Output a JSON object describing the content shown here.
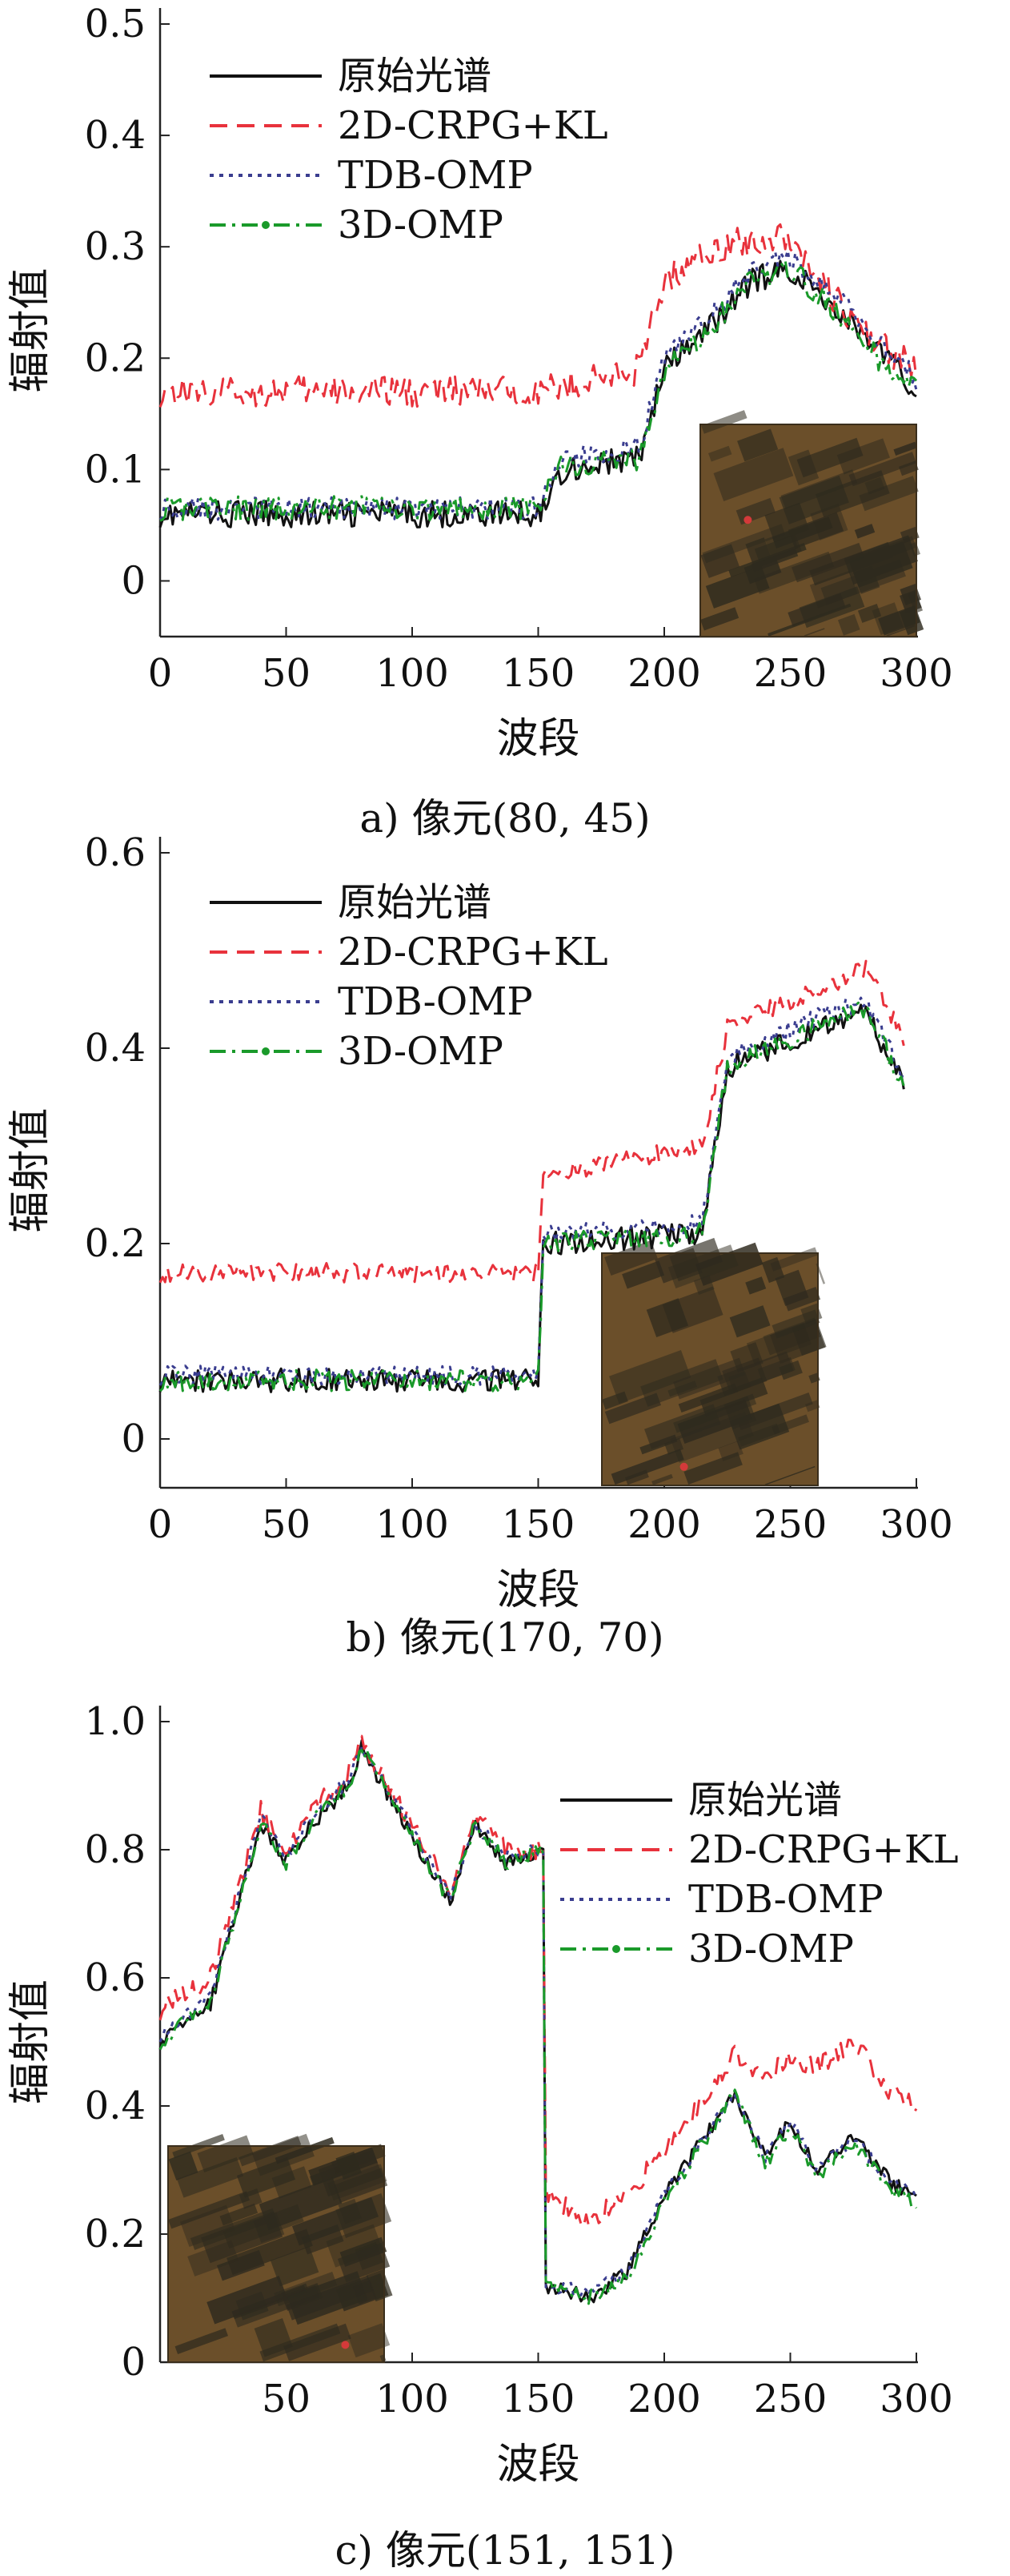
{
  "figure": {
    "panels": [
      {
        "caption": "a) 像元(80, 45)"
      },
      {
        "caption": "b) 像元(170, 70)"
      },
      {
        "caption": "c) 像元(151, 151)"
      }
    ]
  },
  "colors": {
    "original": "#111111",
    "crpg": "#e8323c",
    "tdb": "#3a3d8f",
    "omp3d": "#1a9a2a",
    "inset_bg": "#6b4f2a",
    "inset_dark": "#2e2a1e",
    "inset_marker": "#d43a3a"
  },
  "chart_data": [
    {
      "type": "line",
      "xlabel": "波段",
      "ylabel": "辐射值",
      "xlim": [
        0,
        300
      ],
      "ylim": [
        -0.05,
        0.5
      ],
      "xticks": [
        "0",
        "50",
        "100",
        "150",
        "200",
        "250",
        "300"
      ],
      "yticks": [
        "0",
        "0.1",
        "0.2",
        "0.3",
        "0.4",
        "0.5"
      ],
      "legend_position": "top-left",
      "inset_image": "cropped scene tile, right of center",
      "series": [
        {
          "name": "原始光谱",
          "style": "solid",
          "color": "#111111",
          "x": [
            0,
            150,
            160,
            190,
            200,
            215,
            235,
            250,
            265,
            280,
            300
          ],
          "y": [
            0.06,
            0.06,
            0.1,
            0.11,
            0.19,
            0.22,
            0.27,
            0.28,
            0.25,
            0.22,
            0.17
          ]
        },
        {
          "name": "2D-CRPG+KL",
          "style": "dashed",
          "color": "#e8323c",
          "x": [
            0,
            150,
            190,
            200,
            220,
            250,
            265,
            280,
            300
          ],
          "y": [
            0.17,
            0.17,
            0.19,
            0.27,
            0.3,
            0.31,
            0.26,
            0.22,
            0.19
          ]
        },
        {
          "name": "TDB-OMP",
          "style": "dotted",
          "color": "#3a3d8f",
          "x": [
            0,
            150,
            160,
            190,
            200,
            215,
            235,
            250,
            265,
            280,
            300
          ],
          "y": [
            0.065,
            0.065,
            0.11,
            0.12,
            0.2,
            0.23,
            0.28,
            0.29,
            0.26,
            0.23,
            0.18
          ]
        },
        {
          "name": "3D-OMP",
          "style": "dashdot",
          "color": "#1a9a2a",
          "x": [
            0,
            150,
            160,
            190,
            200,
            215,
            235,
            250,
            265,
            280,
            300
          ],
          "y": [
            0.065,
            0.065,
            0.105,
            0.11,
            0.19,
            0.22,
            0.27,
            0.28,
            0.25,
            0.21,
            0.17
          ]
        }
      ]
    },
    {
      "type": "line",
      "xlabel": "波段",
      "ylabel": "辐射值",
      "xlim": [
        0,
        300
      ],
      "ylim": [
        -0.05,
        0.6
      ],
      "xticks": [
        "0",
        "50",
        "100",
        "150",
        "200",
        "250",
        "300"
      ],
      "yticks": [
        "0",
        "0.2",
        "0.4",
        "0.6"
      ],
      "legend_position": "top-left",
      "inset_image": "cropped scene tile, center",
      "series": [
        {
          "name": "原始光谱",
          "style": "solid",
          "color": "#111111",
          "x": [
            0,
            150,
            152,
            215,
            225,
            260,
            280,
            295
          ],
          "y": [
            0.06,
            0.06,
            0.2,
            0.21,
            0.38,
            0.42,
            0.44,
            0.36
          ]
        },
        {
          "name": "2D-CRPG+KL",
          "style": "dashed",
          "color": "#e8323c",
          "x": [
            0,
            150,
            152,
            215,
            225,
            260,
            280,
            295
          ],
          "y": [
            0.17,
            0.17,
            0.27,
            0.3,
            0.42,
            0.46,
            0.48,
            0.41
          ]
        },
        {
          "name": "TDB-OMP",
          "style": "dotted",
          "color": "#3a3d8f",
          "x": [
            0,
            150,
            152,
            215,
            225,
            260,
            280,
            295
          ],
          "y": [
            0.065,
            0.065,
            0.21,
            0.22,
            0.39,
            0.43,
            0.45,
            0.37
          ]
        },
        {
          "name": "3D-OMP",
          "style": "dashdot",
          "color": "#1a9a2a",
          "x": [
            0,
            150,
            152,
            215,
            225,
            260,
            280,
            295
          ],
          "y": [
            0.06,
            0.06,
            0.2,
            0.21,
            0.38,
            0.42,
            0.44,
            0.36
          ]
        }
      ]
    },
    {
      "type": "line",
      "xlabel": "波段",
      "ylabel": "辐射值",
      "xlim": [
        0,
        300
      ],
      "ylim": [
        0,
        1.0
      ],
      "xticks": [
        "50",
        "100",
        "150",
        "200",
        "250",
        "300"
      ],
      "yticks": [
        "0",
        "0.2",
        "0.4",
        "0.6",
        "0.8",
        "1.0"
      ],
      "legend_position": "top-right",
      "inset_image": "cropped scene tile, lower-left",
      "series": [
        {
          "name": "原始光谱",
          "style": "solid",
          "color": "#111111",
          "x": [
            0,
            20,
            40,
            50,
            60,
            75,
            80,
            100,
            115,
            125,
            137,
            152,
            153,
            170,
            185,
            200,
            228,
            240,
            250,
            260,
            275,
            290,
            300
          ],
          "y": [
            0.5,
            0.56,
            0.84,
            0.78,
            0.84,
            0.9,
            0.96,
            0.82,
            0.72,
            0.84,
            0.78,
            0.8,
            0.12,
            0.1,
            0.14,
            0.26,
            0.42,
            0.32,
            0.38,
            0.3,
            0.35,
            0.28,
            0.26
          ]
        },
        {
          "name": "2D-CRPG+KL",
          "style": "dashed",
          "color": "#e8323c",
          "x": [
            0,
            20,
            40,
            50,
            60,
            75,
            80,
            100,
            115,
            125,
            137,
            152,
            153,
            170,
            185,
            200,
            228,
            240,
            250,
            260,
            275,
            290,
            300
          ],
          "y": [
            0.55,
            0.6,
            0.86,
            0.8,
            0.86,
            0.92,
            0.97,
            0.84,
            0.74,
            0.85,
            0.8,
            0.8,
            0.26,
            0.22,
            0.26,
            0.33,
            0.48,
            0.44,
            0.48,
            0.46,
            0.5,
            0.42,
            0.4
          ]
        },
        {
          "name": "TDB-OMP",
          "style": "dotted",
          "color": "#3a3d8f",
          "x": [
            0,
            20,
            40,
            50,
            60,
            75,
            80,
            100,
            115,
            125,
            137,
            152,
            153,
            170,
            185,
            200,
            228,
            240,
            250,
            260,
            275,
            290,
            300
          ],
          "y": [
            0.51,
            0.57,
            0.85,
            0.79,
            0.85,
            0.91,
            0.96,
            0.83,
            0.73,
            0.84,
            0.79,
            0.8,
            0.12,
            0.11,
            0.14,
            0.26,
            0.42,
            0.32,
            0.38,
            0.3,
            0.35,
            0.28,
            0.26
          ]
        },
        {
          "name": "3D-OMP",
          "style": "dashdot",
          "color": "#1a9a2a",
          "x": [
            0,
            20,
            40,
            50,
            60,
            75,
            80,
            100,
            115,
            125,
            137,
            152,
            153,
            170,
            185,
            200,
            228,
            240,
            250,
            260,
            275,
            290,
            300
          ],
          "y": [
            0.5,
            0.56,
            0.84,
            0.78,
            0.84,
            0.9,
            0.96,
            0.82,
            0.72,
            0.84,
            0.78,
            0.8,
            0.12,
            0.1,
            0.13,
            0.25,
            0.42,
            0.31,
            0.37,
            0.29,
            0.34,
            0.27,
            0.25
          ]
        }
      ]
    }
  ]
}
